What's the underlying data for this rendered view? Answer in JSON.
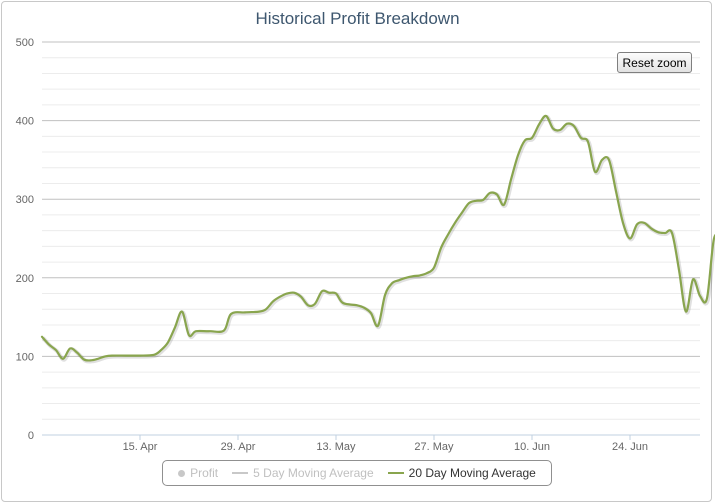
{
  "chart_data": {
    "type": "line",
    "title": "Historical Profit Breakdown",
    "xlabel": "",
    "ylabel": "",
    "ylim": [
      0,
      500
    ],
    "yticks": [
      0,
      100,
      200,
      300,
      400,
      500
    ],
    "x_range": [
      "2013-04-01",
      "2013-07-05"
    ],
    "xticks": [
      {
        "date": "2013-04-15",
        "label": "15. Apr"
      },
      {
        "date": "2013-04-29",
        "label": "29. Apr"
      },
      {
        "date": "2013-05-13",
        "label": "13. May"
      },
      {
        "date": "2013-05-27",
        "label": "27. May"
      },
      {
        "date": "2013-06-10",
        "label": "10. Jun"
      },
      {
        "date": "2013-06-24",
        "label": "24. Jun"
      }
    ],
    "grid": true,
    "legend_position": "bottom-center",
    "series": [
      {
        "name": "Profit",
        "visible": false,
        "color": "#c8c8c8",
        "points": []
      },
      {
        "name": "5 Day Moving Average",
        "visible": false,
        "color": "#c8c8c8",
        "points": []
      },
      {
        "name": "20 Day Moving Average",
        "visible": true,
        "color": "#89a54e",
        "points": [
          [
            "2013-04-01",
            125
          ],
          [
            "2013-04-02",
            115
          ],
          [
            "2013-04-03",
            108
          ],
          [
            "2013-04-04",
            97
          ],
          [
            "2013-04-05",
            110
          ],
          [
            "2013-04-06",
            105
          ],
          [
            "2013-04-07",
            96
          ],
          [
            "2013-04-08",
            95
          ],
          [
            "2013-04-09",
            97
          ],
          [
            "2013-04-10",
            100
          ],
          [
            "2013-04-11",
            101
          ],
          [
            "2013-04-13",
            101
          ],
          [
            "2013-04-15",
            101
          ],
          [
            "2013-04-17",
            102
          ],
          [
            "2013-04-18",
            108
          ],
          [
            "2013-04-19",
            118
          ],
          [
            "2013-04-20",
            137
          ],
          [
            "2013-04-21",
            157
          ],
          [
            "2013-04-22",
            127
          ],
          [
            "2013-04-23",
            132
          ],
          [
            "2013-04-25",
            132
          ],
          [
            "2013-04-27",
            133
          ],
          [
            "2013-04-28",
            154
          ],
          [
            "2013-04-30",
            156
          ],
          [
            "2013-05-02",
            157
          ],
          [
            "2013-05-03",
            160
          ],
          [
            "2013-05-04",
            170
          ],
          [
            "2013-05-05",
            176
          ],
          [
            "2013-05-06",
            180
          ],
          [
            "2013-05-07",
            181
          ],
          [
            "2013-05-08",
            176
          ],
          [
            "2013-05-09",
            165
          ],
          [
            "2013-05-10",
            167
          ],
          [
            "2013-05-11",
            183
          ],
          [
            "2013-05-12",
            181
          ],
          [
            "2013-05-13",
            180
          ],
          [
            "2013-05-14",
            168
          ],
          [
            "2013-05-16",
            165
          ],
          [
            "2013-05-17",
            162
          ],
          [
            "2013-05-18",
            155
          ],
          [
            "2013-05-19",
            139
          ],
          [
            "2013-05-20",
            178
          ],
          [
            "2013-05-21",
            193
          ],
          [
            "2013-05-22",
            197
          ],
          [
            "2013-05-23",
            200
          ],
          [
            "2013-05-24",
            202
          ],
          [
            "2013-05-25",
            203
          ],
          [
            "2013-05-26",
            206
          ],
          [
            "2013-05-27",
            213
          ],
          [
            "2013-05-28",
            238
          ],
          [
            "2013-05-29",
            255
          ],
          [
            "2013-05-30",
            270
          ],
          [
            "2013-05-31",
            283
          ],
          [
            "2013-06-01",
            295
          ],
          [
            "2013-06-02",
            298
          ],
          [
            "2013-06-03",
            299
          ],
          [
            "2013-06-04",
            308
          ],
          [
            "2013-06-05",
            306
          ],
          [
            "2013-06-06",
            293
          ],
          [
            "2013-06-07",
            325
          ],
          [
            "2013-06-08",
            356
          ],
          [
            "2013-06-09",
            375
          ],
          [
            "2013-06-10",
            378
          ],
          [
            "2013-06-11",
            395
          ],
          [
            "2013-06-12",
            406
          ],
          [
            "2013-06-13",
            390
          ],
          [
            "2013-06-14",
            388
          ],
          [
            "2013-06-15",
            396
          ],
          [
            "2013-06-16",
            393
          ],
          [
            "2013-06-17",
            378
          ],
          [
            "2013-06-18",
            373
          ],
          [
            "2013-06-19",
            335
          ],
          [
            "2013-06-20",
            350
          ],
          [
            "2013-06-21",
            350
          ],
          [
            "2013-06-22",
            310
          ],
          [
            "2013-06-23",
            270
          ],
          [
            "2013-06-24",
            250
          ],
          [
            "2013-06-25",
            268
          ],
          [
            "2013-06-26",
            270
          ],
          [
            "2013-06-27",
            263
          ],
          [
            "2013-06-28",
            258
          ],
          [
            "2013-06-29",
            257
          ],
          [
            "2013-06-30",
            257
          ],
          [
            "2013-07-01",
            210
          ],
          [
            "2013-07-02",
            157
          ],
          [
            "2013-07-03",
            198
          ],
          [
            "2013-07-04",
            177
          ],
          [
            "2013-07-05",
            174
          ],
          [
            "2013-07-06",
            250
          ],
          [
            "2013-07-07",
            245
          ],
          [
            "2013-07-08",
            232
          ]
        ]
      }
    ]
  },
  "controls": {
    "reset_zoom_label": "Reset zoom"
  },
  "legend": {
    "items": [
      {
        "label": "Profit",
        "symbol": "dot",
        "active": false
      },
      {
        "label": "5 Day Moving Average",
        "symbol": "line",
        "active": false
      },
      {
        "label": "20 Day Moving Average",
        "symbol": "line",
        "active": true
      }
    ]
  }
}
